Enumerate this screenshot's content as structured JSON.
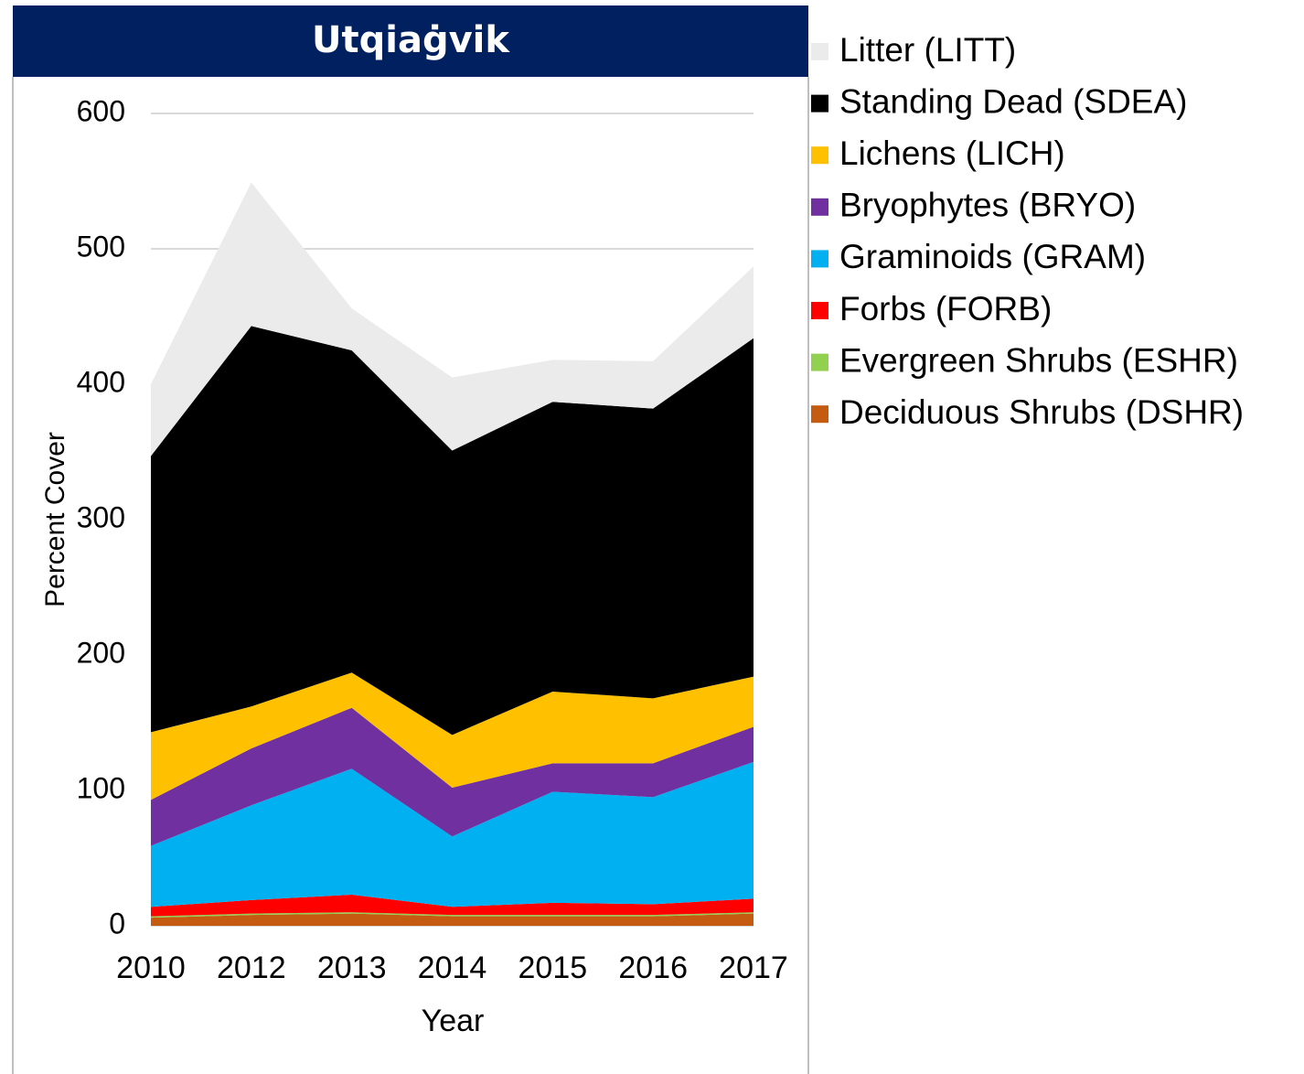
{
  "chart_data": {
    "type": "stacked_area",
    "title": "Utqiaġvik",
    "x_label": "Year",
    "y_label": "Percent Cover",
    "categories": [
      "2010",
      "2012",
      "2013",
      "2014",
      "2015",
      "2016",
      "2017"
    ],
    "series": [
      {
        "name": "Deciduous Shrubs (DSHR)",
        "color": "#c55a11",
        "values": [
          6,
          8,
          9,
          7,
          7,
          7,
          9
        ]
      },
      {
        "name": "Evergreen Shrubs (ESHR)",
        "color": "#92d050",
        "values": [
          1,
          1,
          1,
          1,
          1,
          1,
          1
        ]
      },
      {
        "name": "Forbs (FORB)",
        "color": "#ff0000",
        "values": [
          7,
          10,
          13,
          6,
          9,
          8,
          10
        ]
      },
      {
        "name": "Graminoids (GRAM)",
        "color": "#00b0f0",
        "values": [
          45,
          70,
          93,
          52,
          82,
          79,
          101
        ]
      },
      {
        "name": "Bryophytes (BRYO)",
        "color": "#7030a0",
        "values": [
          34,
          42,
          45,
          36,
          21,
          25,
          26
        ]
      },
      {
        "name": "Lichens (LICH)",
        "color": "#ffc000",
        "values": [
          50,
          31,
          26,
          39,
          53,
          48,
          37
        ]
      },
      {
        "name": "Standing Dead (SDEA)",
        "color": "#000000",
        "values": [
          204,
          281,
          238,
          210,
          214,
          214,
          250
        ]
      },
      {
        "name": "Litter (LITT)",
        "color": "#ebebeb",
        "values": [
          53,
          106,
          31,
          54,
          31,
          35,
          53
        ]
      }
    ],
    "ylim": [
      0,
      600
    ],
    "yticks": [
      0,
      100,
      200,
      300,
      400,
      500,
      600
    ],
    "grid": true,
    "legend": "right"
  }
}
